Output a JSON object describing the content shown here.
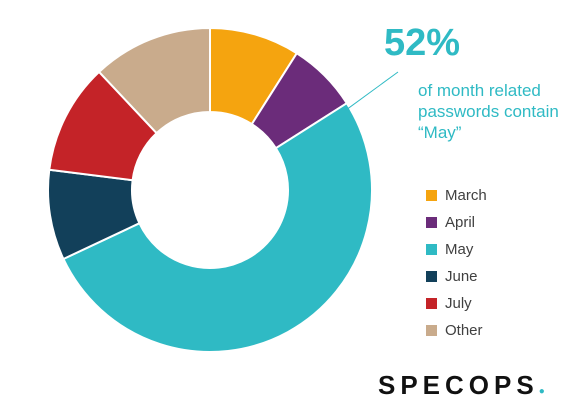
{
  "callout": {
    "percent": "52%",
    "text": "of month related passwords contain “May”"
  },
  "brand": {
    "name": "SPECOPS"
  },
  "chart_data": {
    "type": "pie",
    "donut": true,
    "categories": [
      "March",
      "April",
      "May",
      "June",
      "July",
      "Other"
    ],
    "values": [
      9,
      7,
      52,
      9,
      11,
      12
    ],
    "unit": "%",
    "colors": [
      "#f5a40f",
      "#6b2c7a",
      "#2fbac4",
      "#12405a",
      "#c42328",
      "#c9ab8c"
    ],
    "legend_position": "right",
    "start_angle_deg": 0,
    "direction": "clockwise"
  }
}
